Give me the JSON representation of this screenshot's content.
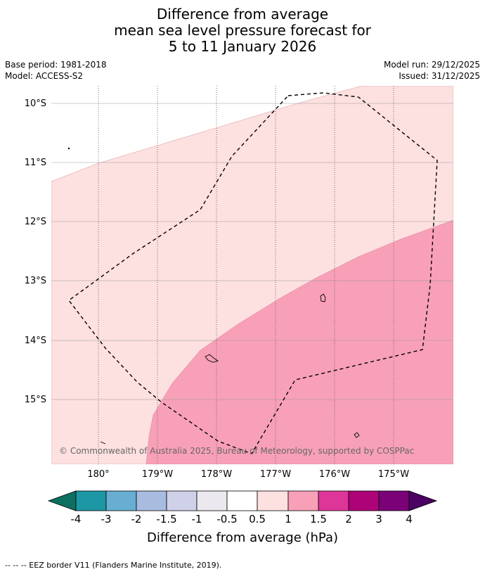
{
  "title": {
    "line1": "Difference from average",
    "line2": "mean sea level pressure forecast for",
    "line3": "5 to 11 January 2026"
  },
  "meta": {
    "base_period": "Base period: 1981-2018",
    "model": "Model: ACCESS-S2",
    "model_run": "Model run: 29/12/2025",
    "issued": "Issued: 31/12/2025"
  },
  "map": {
    "lat_labels": [
      "10°S",
      "11°S",
      "12°S",
      "13°S",
      "14°S",
      "15°S"
    ],
    "lon_labels": [
      "180°",
      "179°W",
      "178°W",
      "177°W",
      "176°W",
      "175°W"
    ],
    "copyright": "© Commonwealth of Australia 2025, Bureau of Meteorology, supported by COSPPac",
    "colors": {
      "band_0_5_to_1": "#fde0e0",
      "band_1_to_1_5": "#f8a0b8"
    }
  },
  "colorbar": {
    "label": "Difference from average (hPa)",
    "ticks": [
      "-4",
      "-3",
      "-2",
      "-1.5",
      "-1",
      "-0.5",
      "0.5",
      "1",
      "1.5",
      "2",
      "3",
      "4"
    ],
    "colors": [
      "#0b7062",
      "#1c97a3",
      "#68aed3",
      "#a7bcdf",
      "#cfd1e8",
      "#ebe9ef",
      "#ffffff",
      "#fde0e0",
      "#f8a0b8",
      "#de3598",
      "#ae0278",
      "#7b0179",
      "#4b0263"
    ]
  },
  "footer": "--  --  -- EEZ border V11 (Flanders Marine Institute, 2019)."
}
